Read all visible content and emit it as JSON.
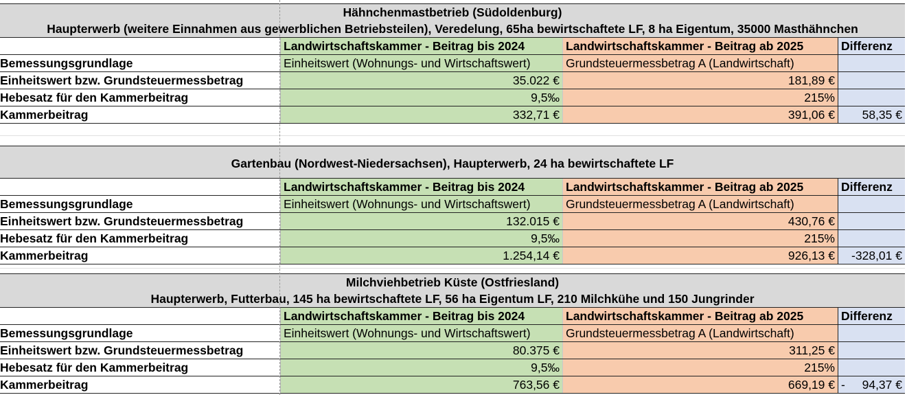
{
  "blocks": [
    {
      "title_lines": [
        "Hähnchenmastbetrieb (Südoldenburg)",
        "Haupterwerb (weitere Einnahmen aus gewerblichen Betriebsteilen), Veredelung, 65ha bewirtschaftete LF, 8 ha Eigentum, 35000 Masthähnchen"
      ],
      "values": {
        "einheitswert": "35.022 €",
        "hebesatz_alt": "9,5‰",
        "beitrag_alt": "332,71 €",
        "messbetrag": "181,89 €",
        "hebesatz_neu": "215%",
        "beitrag_neu": "391,06 €",
        "diff_sign": "",
        "diff": "58,35 €"
      }
    },
    {
      "title_lines": [
        "Gartenbau (Nordwest-Niedersachsen), Haupterwerb, 24 ha bewirtschaftete LF"
      ],
      "values": {
        "einheitswert": "132.015 €",
        "hebesatz_alt": "9,5‰",
        "beitrag_alt": "1.254,14 €",
        "messbetrag": "430,76 €",
        "hebesatz_neu": "215%",
        "beitrag_neu": "926,13 €",
        "diff_sign": "",
        "diff": "-328,01 €"
      }
    },
    {
      "title_lines": [
        "Milchviehbetrieb Küste (Ostfriesland)",
        "Haupterwerb, Futterbau, 145 ha bewirtschaftete LF, 56 ha Eigentum LF, 210 Milchkühe und 150 Jungrinder"
      ],
      "values": {
        "einheitswert": "80.375 €",
        "hebesatz_alt": "9,5‰",
        "beitrag_alt": "763,56 €",
        "messbetrag": "311,25 €",
        "hebesatz_neu": "215%",
        "beitrag_neu": "669,19 €",
        "diff_sign": "-",
        "diff": "94,37 €"
      }
    }
  ],
  "labels": {
    "col_alt": "Landwirtschaftskammer -  Beitrag bis 2024",
    "col_neu": "Landwirtschaftskammer - Beitrag ab 2025",
    "col_diff": "Differenz",
    "row_basis": "Bemessungsgrundlage",
    "row_wert": "Einheitswert bzw. Grundsteuermessbetrag",
    "row_hebesatz": "Hebesatz für den Kammerbeitrag",
    "row_beitrag": "Kammerbeitrag",
    "basis_alt": "Einheitswert (Wohnungs- und Wirtschaftswert)",
    "basis_neu": "Grundsteuermessbetrag A (Landwirtschaft)"
  },
  "colors": {
    "title_bg": "#d9d9d9",
    "alt_bg": "#c6e0b4",
    "neu_bg": "#f8cbad",
    "diff_bg": "#d9e1f2"
  }
}
